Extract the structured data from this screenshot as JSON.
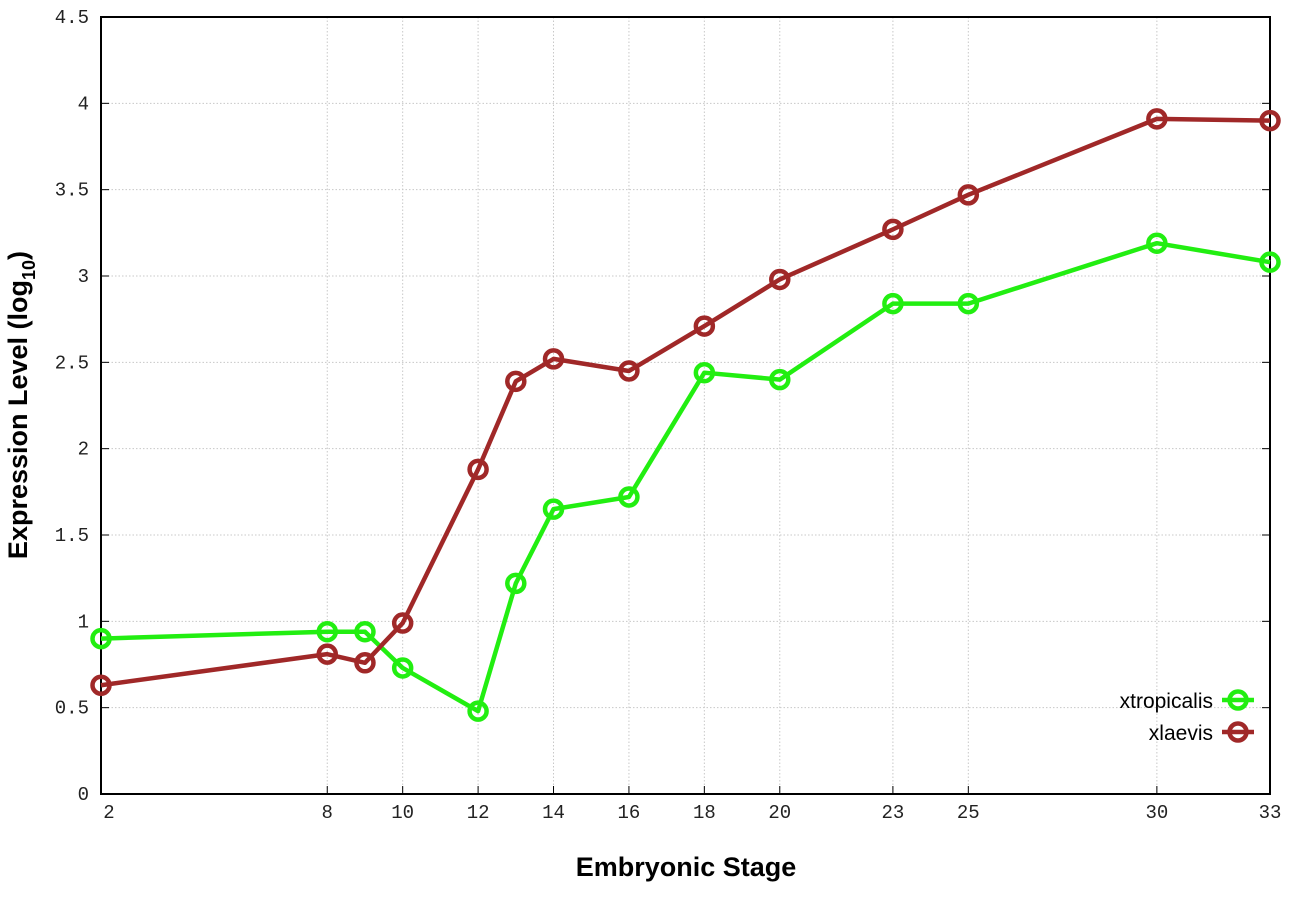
{
  "chart_data": {
    "type": "line",
    "title": "",
    "xlabel": "Embryonic Stage",
    "ylabel": "Expression Level (log",
    "ylabel_sub": "10",
    "ylabel_end": ")",
    "xlim": [
      2,
      33
    ],
    "ylim": [
      0,
      4.5
    ],
    "x_ticks": [
      2,
      8,
      10,
      12,
      14,
      16,
      18,
      20,
      23,
      25,
      30,
      33
    ],
    "y_ticks": [
      0,
      0.5,
      1,
      1.5,
      2,
      2.5,
      3,
      3.5,
      4,
      4.5
    ],
    "y_tick_labels": [
      "0",
      "0.5",
      "1",
      "1.5",
      "2",
      "2.5",
      "3",
      "3.5",
      "4",
      "4.5"
    ],
    "grid": true,
    "legend_position": "bottom-right",
    "x": [
      2,
      8,
      9,
      10,
      12,
      13,
      14,
      16,
      18,
      20,
      23,
      25,
      30,
      33
    ],
    "series": [
      {
        "name": "xtropicalis",
        "color": "#22ee11",
        "values": [
          0.9,
          0.94,
          0.94,
          0.73,
          0.48,
          1.22,
          1.65,
          1.72,
          2.44,
          2.4,
          2.84,
          2.84,
          3.19,
          3.08
        ]
      },
      {
        "name": "xlaevis",
        "color": "#a02828",
        "values": [
          0.63,
          0.81,
          0.76,
          0.99,
          1.88,
          2.39,
          2.52,
          2.45,
          2.71,
          2.98,
          3.27,
          3.47,
          3.91,
          3.9
        ]
      }
    ]
  }
}
